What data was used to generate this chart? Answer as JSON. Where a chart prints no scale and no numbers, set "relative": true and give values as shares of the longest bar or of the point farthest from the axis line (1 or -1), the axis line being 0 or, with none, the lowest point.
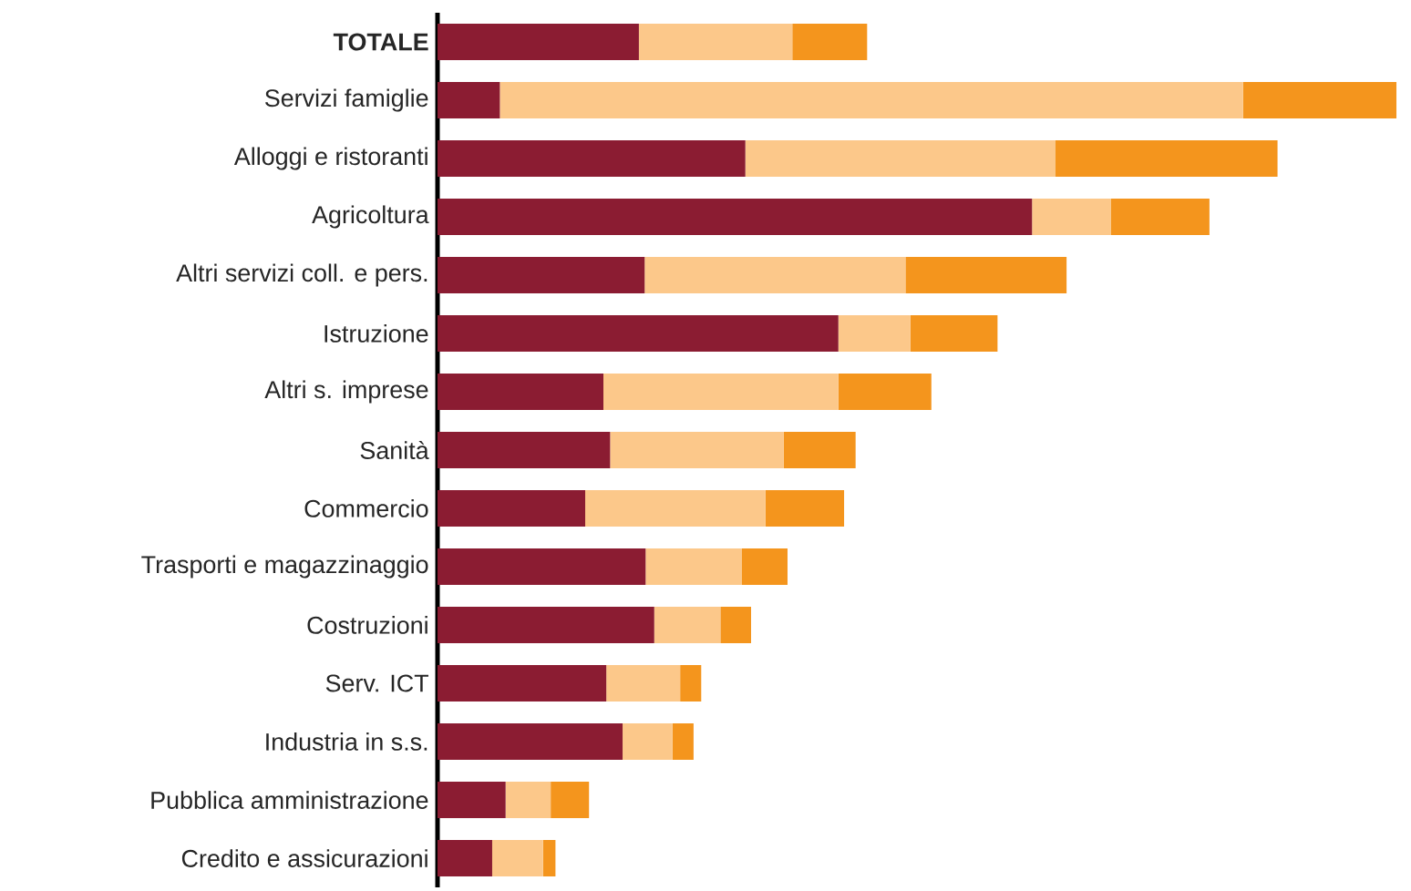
{
  "chart_data": {
    "type": "bar",
    "orientation": "horizontal",
    "stacked": true,
    "relative": true,
    "categories": [
      "TOTALE",
      "Servizi famiglie",
      "Alloggi e ristoranti",
      "Agricoltura",
      "Altri servizi coll. e pers.",
      "Istruzione",
      "Altri s. imprese",
      "Sanità",
      "Commercio",
      "Trasporti e magazzinaggio",
      "Costruzioni",
      "Serv. ICT",
      "Industria in s.s.",
      "Pubblica amministrazione",
      "Credito e assicurazioni"
    ],
    "series": [
      {
        "color": "#8b1c32",
        "values": [
          0.21,
          0.065,
          0.321,
          0.62,
          0.216,
          0.418,
          0.173,
          0.18,
          0.154,
          0.217,
          0.226,
          0.176,
          0.193,
          0.071,
          0.057
        ]
      },
      {
        "color": "#fcc88a",
        "values": [
          0.16,
          0.775,
          0.323,
          0.082,
          0.272,
          0.075,
          0.245,
          0.181,
          0.188,
          0.1,
          0.069,
          0.077,
          0.052,
          0.047,
          0.053
        ]
      },
      {
        "color": "#f4951d",
        "values": [
          0.078,
          0.16,
          0.232,
          0.103,
          0.168,
          0.091,
          0.097,
          0.075,
          0.082,
          0.048,
          0.032,
          0.022,
          0.022,
          0.04,
          0.013
        ]
      }
    ]
  }
}
